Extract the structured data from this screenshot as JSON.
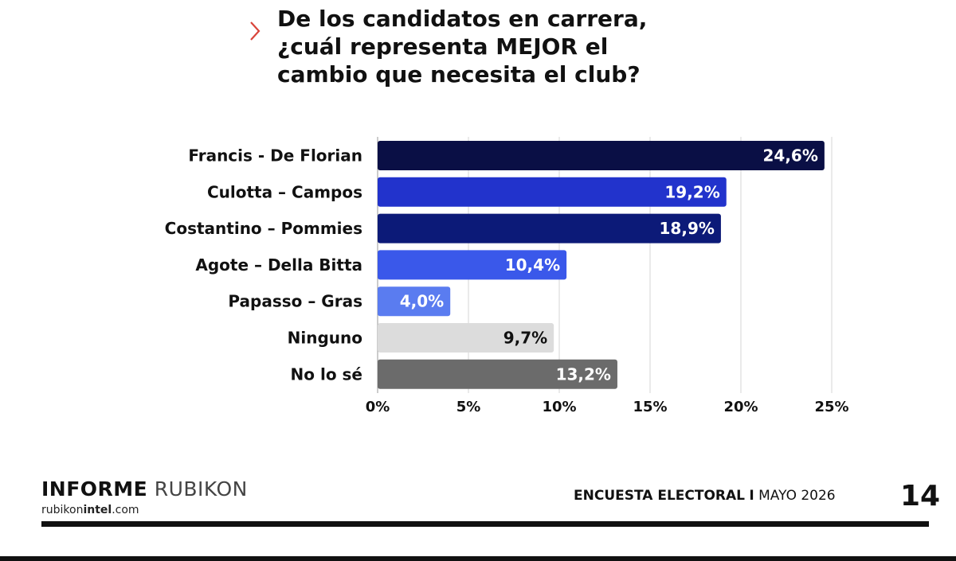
{
  "title_lines": [
    "De los candidatos en carrera,",
    "¿cuál representa MEJOR el",
    "cambio que necesita el club?"
  ],
  "chart_data": {
    "type": "bar",
    "orientation": "horizontal",
    "categories": [
      "Francis - De Florian",
      "Culotta – Campos",
      "Costantino – Pommies",
      "Agote – Della Bitta",
      "Papasso – Gras",
      "Ninguno",
      "No lo sé"
    ],
    "values": [
      24.6,
      19.2,
      18.9,
      10.4,
      4.0,
      9.7,
      13.2
    ],
    "value_labels": [
      "24,6%",
      "19,2%",
      "18,9%",
      "10,4%",
      "4,0%",
      "9,7%",
      "13,2%"
    ],
    "colors": [
      "#0a0f45",
      "#2233cc",
      "#0c1a78",
      "#3a58ea",
      "#5a7cf0",
      "#dcdcdc",
      "#6b6b6b"
    ],
    "label_colors": [
      "#ffffff",
      "#ffffff",
      "#ffffff",
      "#ffffff",
      "#ffffff",
      "#111111",
      "#ffffff"
    ],
    "xlim": [
      0,
      25
    ],
    "xticks": [
      0,
      5,
      10,
      15,
      20,
      25
    ],
    "xtick_labels": [
      "0%",
      "5%",
      "10%",
      "15%",
      "20%",
      "25%"
    ],
    "grid": true,
    "xlabel": "",
    "ylabel": ""
  },
  "footer": {
    "brand_bold": "INFORME",
    "brand_light": "RUBIKON",
    "site_part1": "rubikon",
    "site_part2": "intel",
    "site_part3": ".com",
    "survey_bold": "ENCUESTA ELECTORAL",
    "survey_sep": "I",
    "survey_date": "MAYO 2026",
    "page_number": "14"
  },
  "colors": {
    "accent": "#d9443a",
    "text": "#111111"
  }
}
